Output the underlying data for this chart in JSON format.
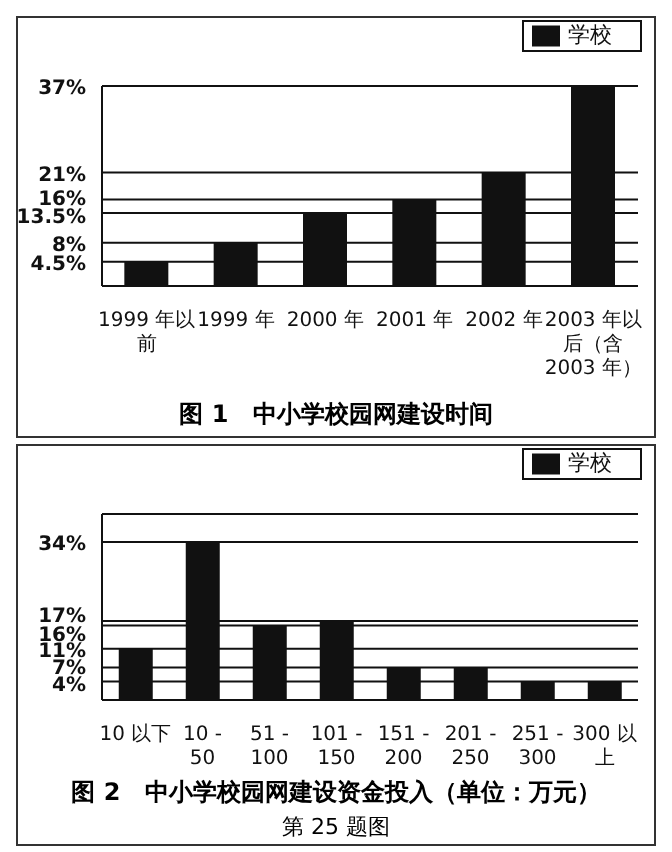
{
  "chart_data": [
    {
      "type": "bar",
      "title": "图 1　中小学校园网建设时间",
      "categories": [
        "1999 年以前",
        "1999 年",
        "2000 年",
        "2001 年",
        "2002 年",
        "2003 年以后（含 2003 年）"
      ],
      "series": [
        {
          "name": "学校",
          "color": "#111111",
          "values": [
            4.5,
            8,
            13.5,
            16,
            21,
            37
          ]
        }
      ],
      "ylim": [
        0,
        37
      ],
      "yticks": [
        {
          "value": 4.5,
          "label": "4.5%"
        },
        {
          "value": 8,
          "label": "8%"
        },
        {
          "value": 13.5,
          "label": "13.5%"
        },
        {
          "value": 16,
          "label": "16%"
        },
        {
          "value": 21,
          "label": "21%"
        },
        {
          "value": 37,
          "label": "37%"
        }
      ],
      "grid": "y",
      "legend": "top right"
    },
    {
      "type": "bar",
      "title": "图 2　中小学校园网建设资金投入（单位：万元）",
      "categories": [
        "10 以下",
        "10 - 50",
        "51 - 100",
        "101 - 150",
        "151 - 200",
        "201 - 250",
        "251 - 300",
        "300 以上"
      ],
      "series": [
        {
          "name": "学校",
          "color": "#111111",
          "values": [
            11,
            34,
            16,
            17,
            7,
            7,
            4,
            4
          ]
        }
      ],
      "ylim": [
        0,
        40
      ],
      "yticks": [
        {
          "value": 4,
          "label": "4%"
        },
        {
          "value": 7,
          "label": "7%"
        },
        {
          "value": 11,
          "label": "11%"
        },
        {
          "value": 16,
          "label": "16%"
        },
        {
          "value": 17,
          "label": "17%"
        },
        {
          "value": 34,
          "label": "34%"
        }
      ],
      "grid": "y",
      "legend": "top right",
      "annotations": [
        "第 25 题图"
      ]
    }
  ]
}
